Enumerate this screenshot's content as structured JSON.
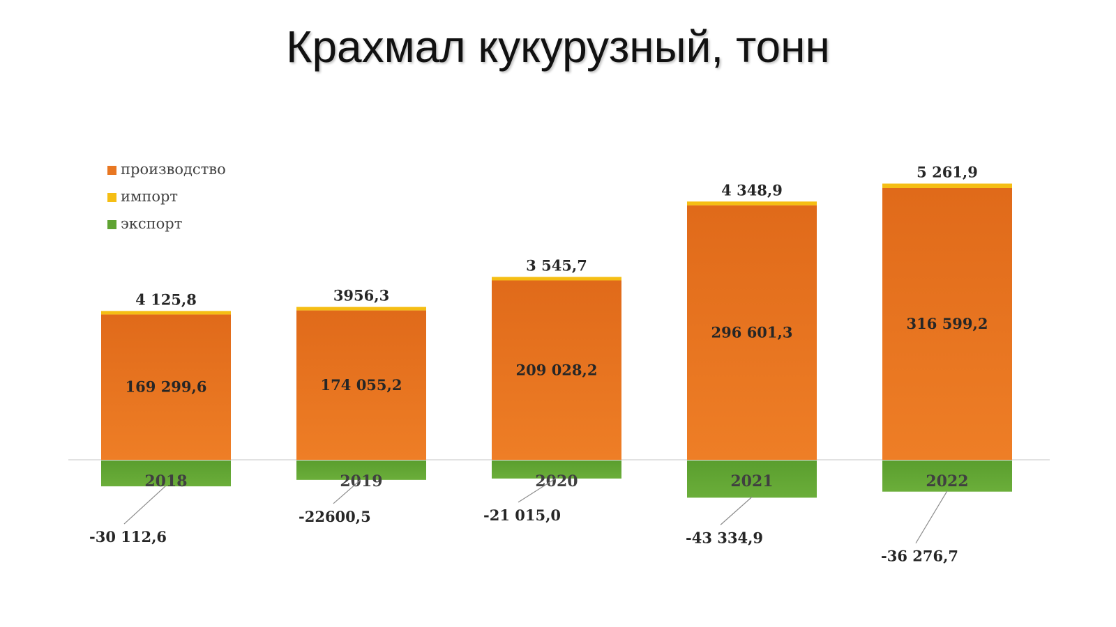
{
  "title": "Крахмал кукурузный, тонн",
  "colors": {
    "production": "#E87722",
    "import": "#F5BE14",
    "export": "#5FA332"
  },
  "chart_data": {
    "type": "bar",
    "stacked": true,
    "categories": [
      "2018",
      "2019",
      "2020",
      "2021",
      "2022"
    ],
    "series": [
      {
        "name": "производство",
        "key": "production",
        "values": [
          169299.6,
          174055.2,
          209028.2,
          296601.3,
          316599.2
        ],
        "labels": [
          "169 299,6",
          "174 055,2",
          "209 028,2",
          "296 601,3",
          "316 599,2"
        ]
      },
      {
        "name": "импорт",
        "key": "import",
        "values": [
          4125.8,
          3956.3,
          3545.7,
          4348.9,
          5261.9
        ],
        "labels": [
          "4 125,8",
          "3956,3",
          "3 545,7",
          "4 348,9",
          "5 261,9"
        ]
      },
      {
        "name": "экспорт",
        "key": "export",
        "values": [
          -30112.6,
          -22600.5,
          -21015.0,
          -43334.9,
          -36276.7
        ],
        "labels": [
          "-30 112,6",
          "-22600,5",
          "-21 015,0",
          "-43 334,9",
          "-36 276,7"
        ]
      }
    ],
    "legend": "top-left",
    "grid": false
  }
}
